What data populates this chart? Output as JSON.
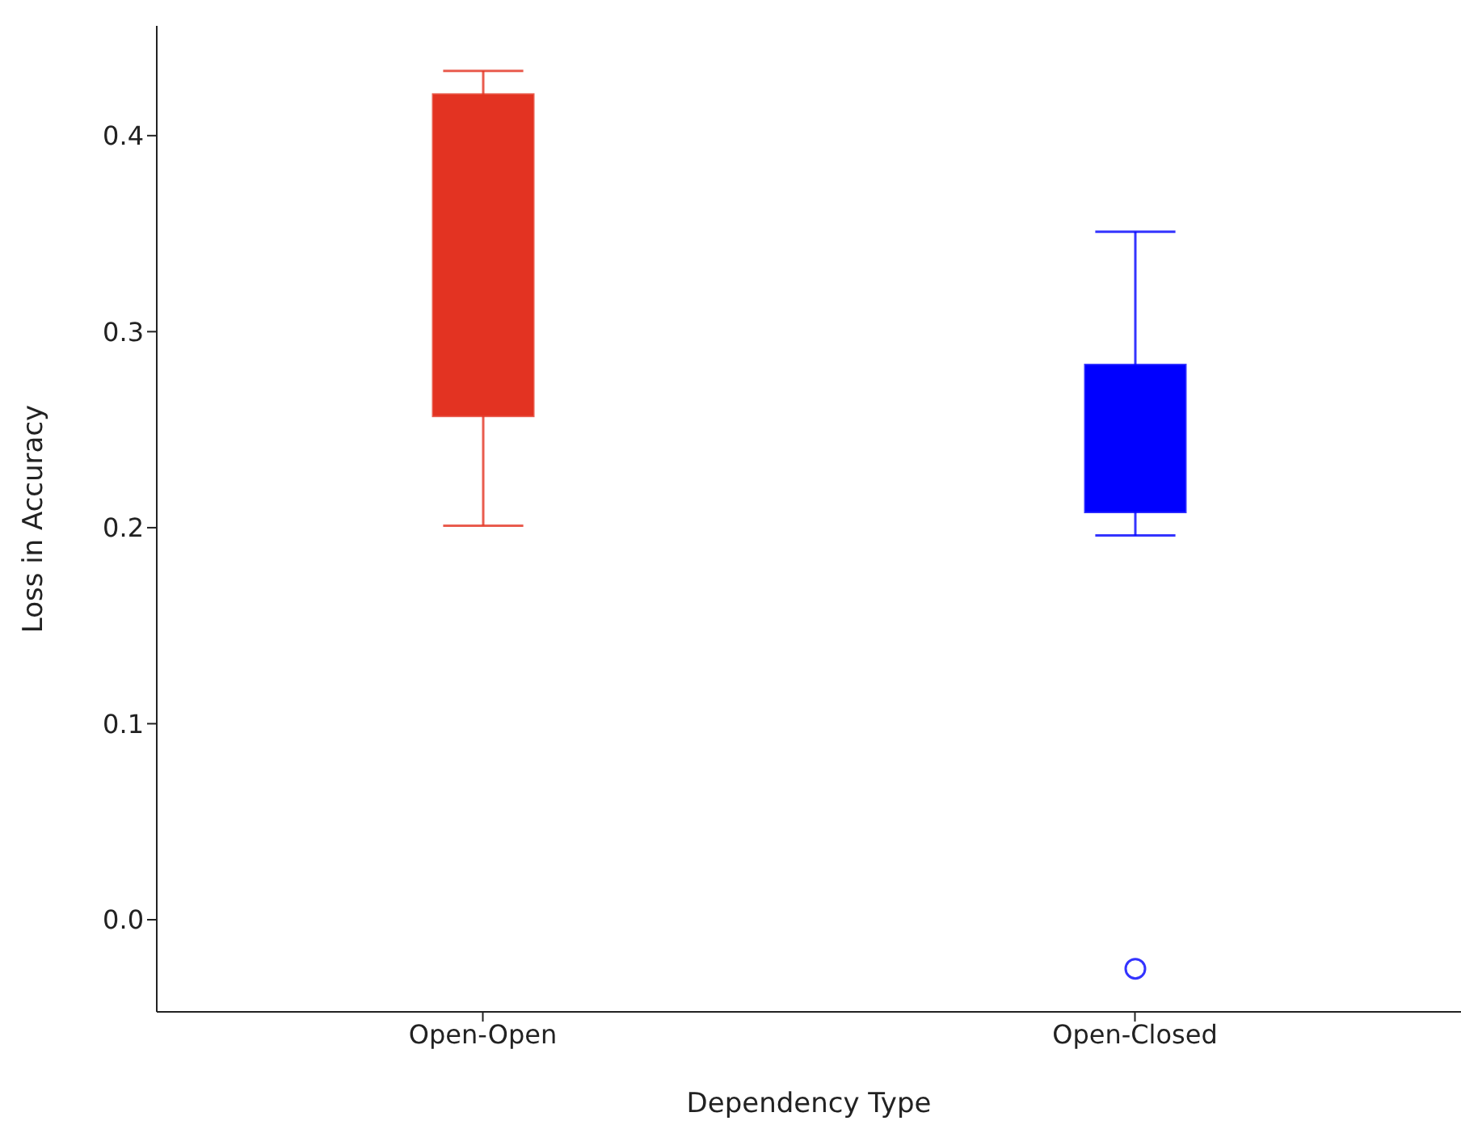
{
  "chart_data": {
    "type": "box",
    "xlabel": "Dependency Type",
    "ylabel": "Loss in Accuracy",
    "categories": [
      "Open-Open",
      "Open-Closed"
    ],
    "colors": [
      "#e33322",
      "#0000ff"
    ],
    "boxes": [
      {
        "low": 0.201,
        "q1": 0.257,
        "median": null,
        "q3": 0.421,
        "high": 0.433
      },
      {
        "low": 0.196,
        "q1": 0.208,
        "median": null,
        "q3": 0.283,
        "high": 0.351,
        "outliers": [
          -0.025
        ]
      }
    ],
    "ylim": [
      -0.047,
      0.456
    ],
    "yticks": [
      {
        "value": 0,
        "label": "0.0"
      },
      {
        "value": 0.1,
        "label": "0.1"
      },
      {
        "value": 0.2,
        "label": "0.2"
      },
      {
        "value": 0.3,
        "label": "0.3"
      },
      {
        "value": 0.4,
        "label": "0.4"
      }
    ],
    "grid": false
  }
}
